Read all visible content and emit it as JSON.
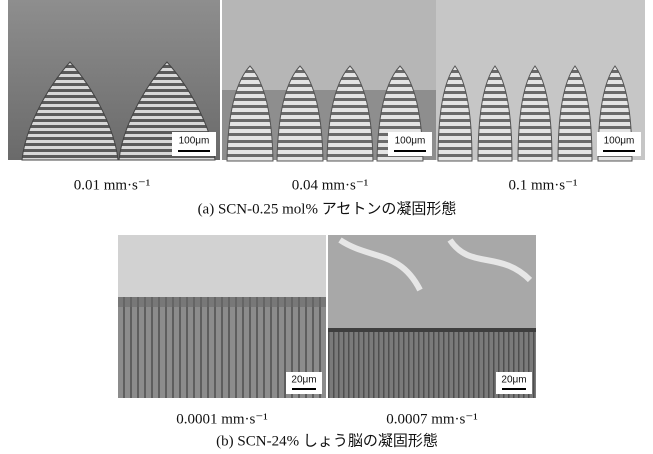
{
  "figure_a": {
    "panels": [
      {
        "scale_bar": "100μm",
        "caption": "0.01 mm·s⁻¹"
      },
      {
        "scale_bar": "100μm",
        "caption": "0.04 mm·s⁻¹"
      },
      {
        "scale_bar": "100μm",
        "caption": "0.1 mm·s⁻¹"
      }
    ],
    "caption": "(a) SCN-0.25 mol% アセトンの凝固形態"
  },
  "figure_b": {
    "panels": [
      {
        "scale_bar": "20μm",
        "caption": "0.0001 mm·s⁻¹"
      },
      {
        "scale_bar": "20μm",
        "caption": "0.0007 mm·s⁻¹"
      }
    ],
    "caption": "(b) SCN-24% しょう脳の凝固形態"
  }
}
